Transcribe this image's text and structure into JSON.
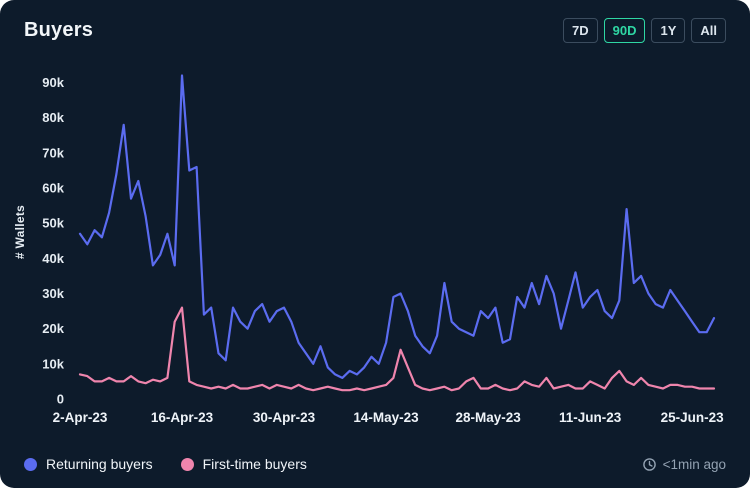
{
  "card": {
    "title": "Buyers"
  },
  "ranges": [
    {
      "label": "7D",
      "active": false
    },
    {
      "label": "90D",
      "active": true
    },
    {
      "label": "1Y",
      "active": false
    },
    {
      "label": "All",
      "active": false
    }
  ],
  "footer": {
    "updated": "<1min ago"
  },
  "colors": {
    "background": "#0d1b2b",
    "active_range": "#2fd7a4",
    "returning_buyers": "#5b6cf0",
    "first_time_buyers": "#ef85ad"
  },
  "chart_data": {
    "type": "line",
    "title": "Buyers",
    "xlabel": "",
    "ylabel": "# Wallets",
    "ylim": [
      0,
      95000
    ],
    "grid": false,
    "legend_position": "bottom-left",
    "x_start_date": "2-Apr-23",
    "x_interval": "daily",
    "yticks": [
      [
        0,
        "0"
      ],
      [
        10000,
        "10k"
      ],
      [
        20000,
        "20k"
      ],
      [
        30000,
        "30k"
      ],
      [
        40000,
        "40k"
      ],
      [
        50000,
        "50k"
      ],
      [
        60000,
        "60k"
      ],
      [
        70000,
        "70k"
      ],
      [
        80000,
        "80k"
      ],
      [
        90000,
        "90k"
      ]
    ],
    "xticks": [
      [
        0,
        "2-Apr-23"
      ],
      [
        14,
        "16-Apr-23"
      ],
      [
        28,
        "30-Apr-23"
      ],
      [
        42,
        "14-May-23"
      ],
      [
        56,
        "28-May-23"
      ],
      [
        70,
        "11-Jun-23"
      ],
      [
        84,
        "25-Jun-23"
      ]
    ],
    "series": [
      {
        "name": "Returning buyers",
        "color": "#5b6cf0",
        "values": [
          47000,
          44000,
          48000,
          46000,
          53000,
          64000,
          78000,
          57000,
          62000,
          52000,
          38000,
          41000,
          47000,
          38000,
          92000,
          65000,
          66000,
          24000,
          26000,
          13000,
          11000,
          26000,
          22000,
          20000,
          25000,
          27000,
          22000,
          25000,
          26000,
          22000,
          16000,
          13000,
          10000,
          15000,
          9000,
          7000,
          6000,
          8000,
          7000,
          9000,
          12000,
          10000,
          16000,
          29000,
          30000,
          25000,
          18000,
          15000,
          13000,
          18000,
          33000,
          22000,
          20000,
          19000,
          18000,
          25000,
          23000,
          26000,
          16000,
          17000,
          29000,
          26000,
          33000,
          27000,
          35000,
          30000,
          20000,
          28000,
          36000,
          26000,
          29000,
          31000,
          25000,
          23000,
          28000,
          54000,
          33000,
          35000,
          30000,
          27000,
          26000,
          31000,
          28000,
          25000,
          22000,
          19000,
          19000,
          23000
        ]
      },
      {
        "name": "First-time buyers",
        "color": "#ef85ad",
        "values": [
          7000,
          6500,
          5000,
          5000,
          6000,
          5000,
          5000,
          6500,
          5000,
          4500,
          5500,
          5000,
          6000,
          22000,
          26000,
          5000,
          4000,
          3500,
          3000,
          3500,
          3000,
          4000,
          3000,
          3000,
          3500,
          4000,
          3000,
          4000,
          3500,
          3000,
          4000,
          3000,
          2500,
          3000,
          3500,
          3000,
          2500,
          2500,
          3000,
          2500,
          3000,
          3500,
          4000,
          6000,
          14000,
          9000,
          4000,
          3000,
          2500,
          3000,
          3500,
          2500,
          3000,
          5000,
          6000,
          3000,
          3000,
          4000,
          3000,
          2500,
          3000,
          5000,
          4000,
          3500,
          6000,
          3000,
          3500,
          4000,
          3000,
          3000,
          5000,
          4000,
          3000,
          6000,
          8000,
          5000,
          4000,
          6000,
          4000,
          3500,
          3000,
          4000,
          4000,
          3500,
          3500,
          3000,
          3000,
          3000
        ]
      }
    ]
  }
}
